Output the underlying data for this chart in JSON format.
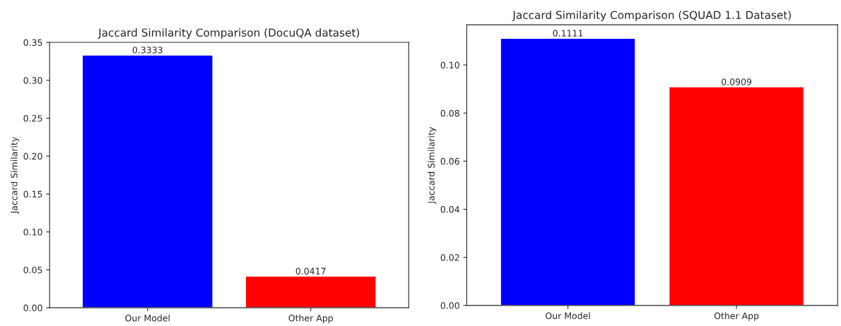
{
  "chart_data": [
    {
      "type": "bar",
      "title": "Jaccard Similarity Comparison (DocuQA dataset)",
      "ylabel": "Jaccard Similarity",
      "categories": [
        "Our Model",
        "Other App"
      ],
      "values": [
        0.3333,
        0.0417
      ],
      "colors": [
        "#0000ff",
        "#ff0000"
      ],
      "ylim": [
        0,
        0.35
      ],
      "yticks": [
        {
          "value": 0,
          "label": "0.00"
        },
        0.05,
        {
          "value": 0.1,
          "label": "0.10"
        },
        0.15,
        {
          "value": 0.2,
          "label": "0.20"
        },
        0.25,
        {
          "value": 0.3,
          "label": "0.30"
        },
        0.35
      ],
      "data_labels": true
    },
    {
      "type": "bar",
      "title": "Jaccard Similarity Comparison (SQUAD 1.1 Dataset)",
      "ylabel": "Jaccard Similarity",
      "categories": [
        "Our Model",
        "Other App"
      ],
      "values": [
        0.1111,
        0.0909
      ],
      "colors": [
        "#0000ff",
        "#ff0000"
      ],
      "ylim": [
        0,
        0.1167
      ],
      "yticks": [
        {
          "value": 0,
          "label": "0.00"
        },
        0.02,
        0.04,
        0.06,
        0.08,
        {
          "value": 0.1,
          "label": "0.10"
        }
      ],
      "data_labels": true
    }
  ]
}
